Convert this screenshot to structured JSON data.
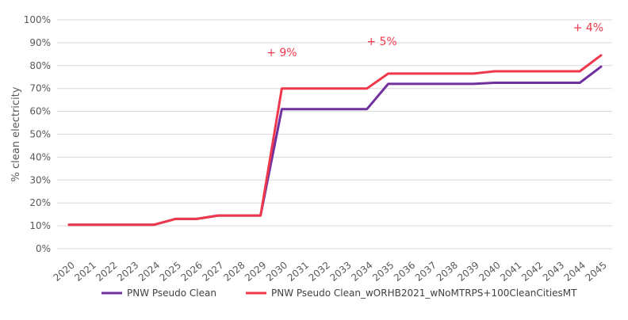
{
  "chart_data": {
    "type": "line",
    "title": "",
    "xlabel": "",
    "ylabel": "% clean electricity",
    "ylim": [
      0,
      100
    ],
    "yticks": [
      "0%",
      "10%",
      "20%",
      "30%",
      "40%",
      "50%",
      "60%",
      "70%",
      "80%",
      "90%",
      "100%"
    ],
    "grid": true,
    "legend_position": "bottom",
    "x": [
      "2020",
      "2021",
      "2022",
      "2023",
      "2024",
      "2025",
      "2026",
      "2027",
      "2028",
      "2029",
      "2030",
      "2031",
      "2032",
      "2033",
      "2034",
      "2035",
      "2036",
      "2037",
      "2038",
      "2039",
      "2040",
      "2041",
      "2042",
      "2043",
      "2044",
      "2045"
    ],
    "series": [
      {
        "name": "PNW Pseudo Clean",
        "color": "#7030a0",
        "values": [
          10.5,
          10.5,
          10.5,
          10.5,
          10.5,
          13,
          13,
          14.5,
          14.5,
          14.5,
          61,
          61,
          61,
          61,
          61,
          72,
          72,
          72,
          72,
          72,
          72.5,
          72.5,
          72.5,
          72.5,
          72.5,
          79.5
        ]
      },
      {
        "name": "PNW Pseudo Clean_wORHB2021_wNoMTRPS+100CleanCitiesMT",
        "color": "#f0384c",
        "values": [
          10.5,
          10.5,
          10.5,
          10.5,
          10.5,
          13,
          13,
          14.5,
          14.5,
          14.5,
          70,
          70,
          70,
          70,
          70,
          76.5,
          76.5,
          76.5,
          76.5,
          76.5,
          77.5,
          77.5,
          77.5,
          77.5,
          77.5,
          84.5
        ]
      }
    ],
    "annotations": [
      {
        "text": "+ 9%",
        "x": "2030",
        "y": 84,
        "color": "#f0384c"
      },
      {
        "text": "+ 5%",
        "x": "2034.7",
        "y": 89,
        "color": "#f0384c"
      },
      {
        "text": "+ 4%",
        "x": "2044.4",
        "y": 95,
        "color": "#f0384c"
      }
    ]
  }
}
